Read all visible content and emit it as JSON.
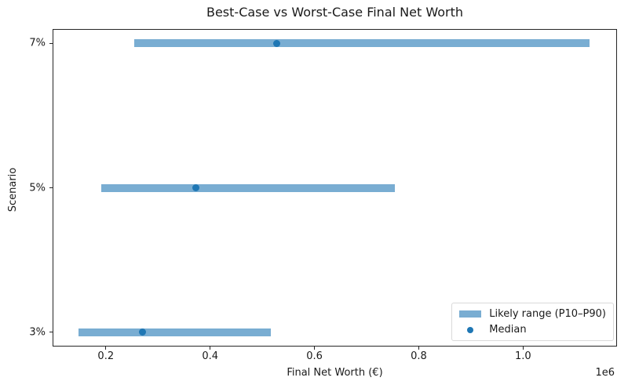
{
  "chart_data": {
    "type": "bar",
    "subtype": "horizontal-range-with-median-dots",
    "title": "Best-Case vs Worst-Case Final Net Worth",
    "xlabel": "Final Net Worth (€)",
    "ylabel": "Scenario",
    "x_scale_offset_label": "1e6",
    "categories": [
      "7%",
      "5%",
      "3%"
    ],
    "rows": [
      {
        "label": "7%",
        "p10": 255000,
        "median": 528000,
        "p90": 1128000
      },
      {
        "label": "5%",
        "p10": 192000,
        "median": 372000,
        "p90": 754000
      },
      {
        "label": "3%",
        "p10": 147000,
        "median": 270000,
        "p90": 516000
      }
    ],
    "xlim": [
      98000,
      1180000
    ],
    "xticks": [
      200000,
      400000,
      600000,
      800000,
      1000000
    ],
    "xtick_labels": [
      "0.2",
      "0.4",
      "0.6",
      "0.8",
      "1.0"
    ],
    "grid": false,
    "legend": {
      "position": "lower right",
      "entries": [
        {
          "label": "Likely range (P10–P90)",
          "marker": "bar",
          "color": "#79add2"
        },
        {
          "label": "Median",
          "marker": "dot",
          "color": "#1f77b4"
        }
      ]
    },
    "colors": {
      "range_bar": "#79add2",
      "median_dot": "#1f77b4",
      "spine": "#262626",
      "text": "#1a1a1a",
      "legend_border": "#d9d9d9"
    }
  }
}
